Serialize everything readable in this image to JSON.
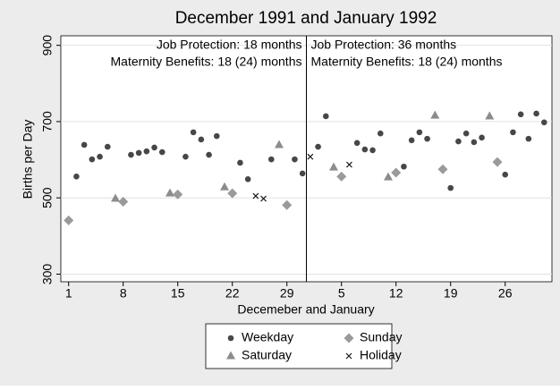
{
  "chart_data": {
    "type": "scatter",
    "title": "December 1991 and January 1992",
    "x_label": "Decemeber and January",
    "y_label": "Births per Day",
    "annotations": [
      {
        "lines": [
          "Job Protection: 18 months",
          "Maternity Benefits: 18 (24) months"
        ],
        "side": "left"
      },
      {
        "lines": [
          "Job Protection: 36 months",
          "Maternity Benefits: 18 (24) months"
        ],
        "side": "right"
      }
    ],
    "xline": 31.5,
    "xlim": [
      0,
      63
    ],
    "ylim": [
      280,
      925
    ],
    "xticks": [
      1,
      8,
      15,
      22,
      29,
      {
        "value": 36,
        "label": "5"
      },
      {
        "value": 43,
        "label": "12"
      },
      {
        "value": 50,
        "label": "19"
      },
      {
        "value": 57,
        "label": "26"
      }
    ],
    "yticks": [
      300,
      500,
      700,
      900
    ],
    "grid": true,
    "series": [
      {
        "name": "Weekday",
        "marker": "circle",
        "color": "#474747",
        "x": [
          2,
          3,
          4,
          5,
          6,
          9,
          10,
          11,
          12,
          13,
          16,
          17,
          18,
          19,
          20,
          23,
          24,
          27,
          30,
          31,
          33,
          34,
          38,
          39,
          40,
          41,
          44,
          45,
          46,
          47,
          50,
          51,
          52,
          53,
          54,
          57,
          58,
          59,
          60,
          61,
          62
        ],
        "values": [
          556,
          639,
          601,
          608,
          634,
          613,
          618,
          622,
          632,
          620,
          608,
          672,
          653,
          613,
          662,
          592,
          549,
          601,
          601,
          564,
          634,
          714,
          644,
          627,
          625,
          669,
          582,
          651,
          672,
          655,
          526,
          648,
          669,
          646,
          658,
          561,
          672,
          719,
          655,
          721,
          698
        ]
      },
      {
        "name": "Sunday",
        "marker": "diamond",
        "color": "#9a9a9a",
        "x": [
          1,
          8,
          15,
          22,
          29,
          36,
          43,
          49,
          56
        ],
        "values": [
          441,
          490,
          509,
          512,
          481,
          556,
          566,
          575,
          594
        ]
      },
      {
        "name": "Saturday",
        "marker": "triangle",
        "color": "#8c8c8c",
        "x": [
          7,
          14,
          21,
          28,
          35,
          42,
          48,
          55
        ],
        "values": [
          498,
          512,
          528,
          639,
          580,
          554,
          716,
          714
        ]
      },
      {
        "name": "Holiday",
        "marker": "x",
        "color": "#1a1a1a",
        "x": [
          25,
          26,
          32,
          37
        ],
        "values": [
          505,
          498,
          608,
          587
        ]
      }
    ]
  }
}
